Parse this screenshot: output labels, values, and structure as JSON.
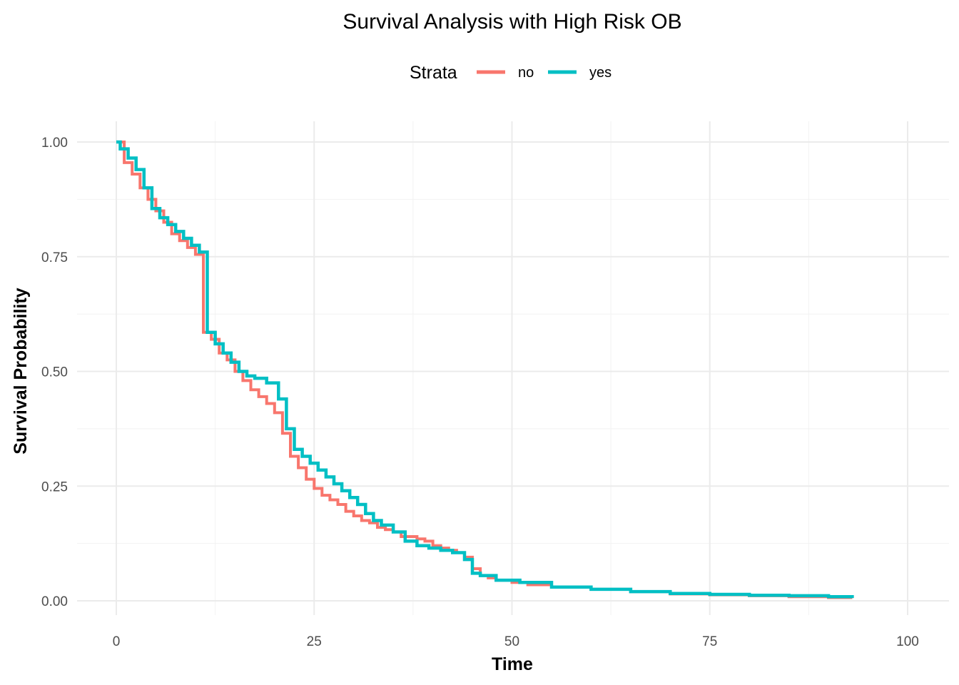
{
  "chart_data": {
    "type": "line",
    "subtype": "step",
    "title": "Survival Analysis with High Risk OB",
    "xlabel": "Time",
    "ylabel": "Survival Probability",
    "xlim": [
      0,
      100
    ],
    "ylim": [
      0,
      1
    ],
    "x_ticks": [
      0,
      25,
      50,
      75,
      100
    ],
    "x_tick_labels": [
      "0",
      "25",
      "50",
      "75",
      "100"
    ],
    "y_ticks": [
      0,
      0.25,
      0.5,
      0.75,
      1
    ],
    "y_tick_labels": [
      "0.00",
      "0.25",
      "0.50",
      "0.75",
      "1.00"
    ],
    "grid": true,
    "legend": {
      "title": "Strata",
      "position": "top"
    },
    "series": [
      {
        "name": "no",
        "color": "#F8766D",
        "x": [
          0,
          1,
          2,
          3,
          4,
          5,
          6,
          7,
          8,
          9,
          10,
          11,
          12,
          13,
          14,
          15,
          16,
          17,
          18,
          19,
          20,
          21,
          22,
          23,
          24,
          25,
          26,
          27,
          28,
          29,
          30,
          31,
          32,
          33,
          34,
          35,
          36,
          37,
          38,
          39,
          40,
          41,
          42,
          43,
          44,
          45,
          46,
          47,
          48,
          50,
          52,
          55,
          60,
          65,
          70,
          75,
          80,
          85,
          90,
          93
        ],
        "y": [
          1.0,
          0.955,
          0.93,
          0.9,
          0.875,
          0.85,
          0.825,
          0.8,
          0.785,
          0.77,
          0.755,
          0.585,
          0.57,
          0.54,
          0.525,
          0.5,
          0.48,
          0.46,
          0.445,
          0.43,
          0.41,
          0.365,
          0.315,
          0.29,
          0.265,
          0.245,
          0.23,
          0.22,
          0.21,
          0.195,
          0.185,
          0.175,
          0.17,
          0.16,
          0.155,
          0.15,
          0.14,
          0.14,
          0.135,
          0.13,
          0.12,
          0.115,
          0.11,
          0.105,
          0.095,
          0.07,
          0.055,
          0.05,
          0.045,
          0.04,
          0.035,
          0.03,
          0.025,
          0.02,
          0.015,
          0.013,
          0.011,
          0.009,
          0.007,
          0.006
        ]
      },
      {
        "name": "yes",
        "color": "#00BFC4",
        "x": [
          0,
          0.5,
          1.5,
          2.5,
          3.5,
          4.5,
          5.5,
          6.5,
          7.5,
          8.5,
          9.5,
          10.5,
          11.5,
          12.5,
          13.5,
          14.5,
          15.5,
          16.5,
          17.5,
          19,
          20.5,
          21.5,
          22.5,
          23.5,
          24.5,
          25.5,
          26.5,
          27.5,
          28.5,
          29.5,
          30.5,
          31.5,
          32.5,
          33.5,
          35,
          36.5,
          38,
          39.5,
          41,
          42.5,
          44,
          45,
          46,
          48,
          51,
          55,
          60,
          65,
          70,
          75,
          80,
          85,
          90,
          93
        ],
        "y": [
          1.0,
          0.985,
          0.965,
          0.94,
          0.9,
          0.855,
          0.835,
          0.82,
          0.805,
          0.79,
          0.775,
          0.76,
          0.585,
          0.56,
          0.54,
          0.52,
          0.5,
          0.49,
          0.485,
          0.475,
          0.44,
          0.375,
          0.33,
          0.315,
          0.3,
          0.285,
          0.27,
          0.255,
          0.24,
          0.225,
          0.21,
          0.19,
          0.175,
          0.165,
          0.15,
          0.13,
          0.12,
          0.115,
          0.11,
          0.105,
          0.09,
          0.06,
          0.055,
          0.045,
          0.04,
          0.03,
          0.025,
          0.02,
          0.016,
          0.014,
          0.012,
          0.011,
          0.009,
          0.006
        ]
      }
    ]
  }
}
